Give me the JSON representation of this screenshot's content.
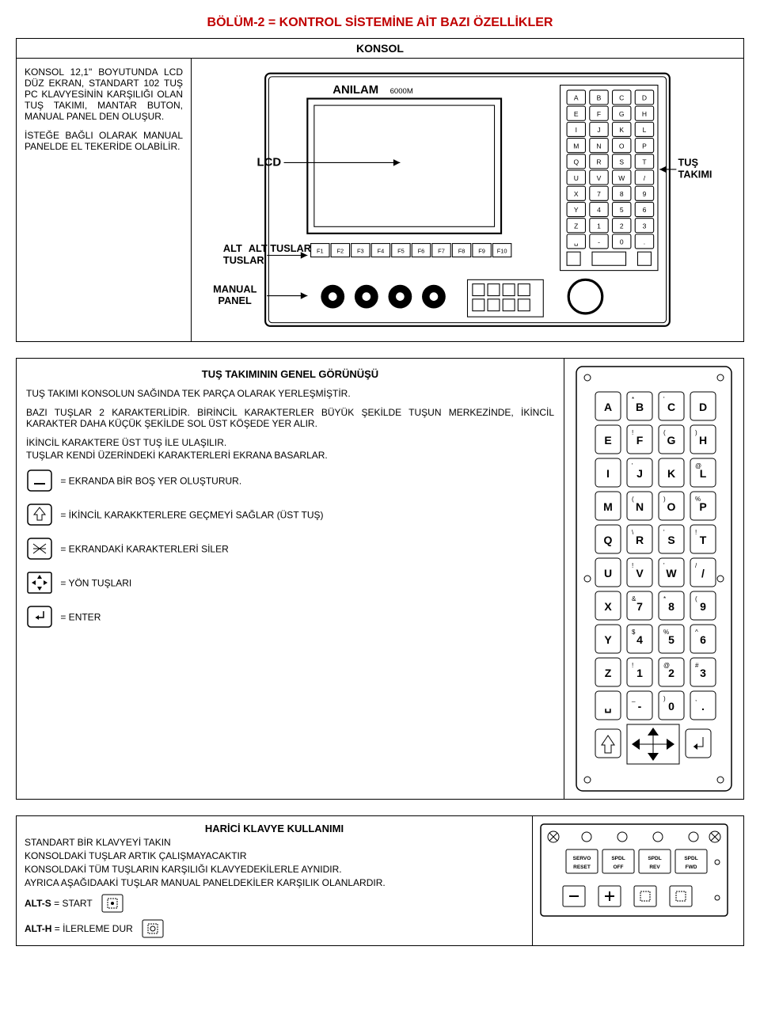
{
  "title": "BÖLÜM-2 = KONTROL SİSTEMİNE AİT BAZI ÖZELLİKLER",
  "s1": {
    "header": "KONSOL",
    "p1": "KONSOL 12,1\" BOYUTUNDA LCD DÜZ EKRAN, STANDART 102 TUŞ PC KLAVYESİNİN KARŞILIĞI OLAN TUŞ TAKIMI, MANTAR BUTON, MANUAL PANEL DEN OLUŞUR.",
    "p2": "İSTEĞE BAĞLI OLARAK MANUAL PANELDE EL TEKERİDE OLABİLİR.",
    "labels": {
      "lcd": "LCD",
      "alt": "ALT TUSLAR",
      "manual": "MANUAL PANEL",
      "tus": "TUŞ TAKIMI",
      "brand": "ANILAM",
      "model": "6000M"
    },
    "fkeys": [
      "F1",
      "F2",
      "F3",
      "F4",
      "F5",
      "F6",
      "F7",
      "F8",
      "F9",
      "F10"
    ],
    "keypad_rows": [
      [
        "A",
        "B",
        "C",
        "D"
      ],
      [
        "E",
        "F",
        "G",
        "H"
      ],
      [
        "I",
        "J",
        "K",
        "L"
      ],
      [
        "M",
        "N",
        "O",
        "P"
      ],
      [
        "Q",
        "R",
        "S",
        "T"
      ],
      [
        "U",
        "V",
        "W",
        "/"
      ],
      [
        "X",
        "7",
        "8",
        "9"
      ],
      [
        "Y",
        "4",
        "5",
        "6"
      ],
      [
        "Z",
        "1",
        "2",
        "3"
      ],
      [
        "␣",
        "-",
        "0",
        "."
      ]
    ]
  },
  "s2": {
    "header": "TUŞ TAKIMININ GENEL GÖRÜNÜŞÜ",
    "p1": "TUŞ TAKIMI KONSOLUN SAĞINDA TEK PARÇA OLARAK YERLEŞMİŞTİR.",
    "p2": "BAZI TUŞLAR 2 KARAKTERLİDİR. BİRİNCİL KARAKTERLER BÜYÜK ŞEKİLDE TUŞUN MERKEZİNDE, İKİNCİL KARAKTER DAHA KÜÇÜK ŞEKİLDE SOL ÜST KÖŞEDE YER ALIR.",
    "p3": "İKİNCİL KARAKTERE ÜST TUŞ İLE ULAŞILIR.",
    "p4": "TUŞLAR KENDİ ÜZERİNDEKİ KARAKTERLERİ EKRANA BASARLAR.",
    "l1": "= EKRANDA BİR BOŞ YER OLUŞTURUR.",
    "l2": "= İKİNCİL KARAKKTERLERE GEÇMEYİ SAĞLAR (ÜST TUŞ)",
    "l3": "= EKRANDAKİ KARAKTERLERİ SİLER",
    "l4": "= YÖN TUŞLARI",
    "l5": "= ENTER",
    "keypad_rows": [
      [
        [
          "A",
          ""
        ],
        [
          "B",
          "*"
        ],
        [
          "C",
          "'"
        ],
        [
          "D",
          ""
        ]
      ],
      [
        [
          "E",
          ""
        ],
        [
          "F",
          "!"
        ],
        [
          "G",
          "("
        ],
        [
          "H",
          ")"
        ]
      ],
      [
        [
          "I",
          ""
        ],
        [
          "J",
          "'"
        ],
        [
          "K",
          ""
        ],
        [
          "L",
          "@"
        ]
      ],
      [
        [
          "M",
          ""
        ],
        [
          "N",
          "("
        ],
        [
          "O",
          ")"
        ],
        [
          "P",
          "%"
        ]
      ],
      [
        [
          "Q",
          ""
        ],
        [
          "R",
          "\\"
        ],
        [
          "S",
          "'"
        ],
        [
          "T",
          "!"
        ]
      ],
      [
        [
          "U",
          ""
        ],
        [
          "V",
          "!"
        ],
        [
          "W",
          "'"
        ],
        [
          "/",
          "/"
        ]
      ],
      [
        [
          "X",
          ""
        ],
        [
          "7",
          "&"
        ],
        [
          "8",
          "*"
        ],
        [
          "9",
          "("
        ]
      ],
      [
        [
          "Y",
          ""
        ],
        [
          "4",
          "$"
        ],
        [
          "5",
          "%"
        ],
        [
          "6",
          "^"
        ]
      ],
      [
        [
          "Z",
          ""
        ],
        [
          "1",
          "!"
        ],
        [
          "2",
          "@"
        ],
        [
          "3",
          "#"
        ]
      ],
      [
        [
          "␣",
          ""
        ],
        [
          "-",
          "_"
        ],
        [
          "0",
          ")"
        ],
        [
          ".",
          ","
        ]
      ]
    ]
  },
  "s3": {
    "header": "HARİCİ KLAVYE KULLANIMI",
    "p1": "STANDART BİR KLAVYEYİ TAKIN",
    "p2": "KONSOLDAKİ TUŞLAR ARTIK ÇALIŞMAYACAKTIR",
    "p3": "KONSOLDAKİ TÜM TUŞLARIN KARŞILIĞI KLAVYEDEKİLERLE AYNIDIR.",
    "p4": "AYRICA AŞAĞIDAAKİ TUŞLAR MANUAL PANELDEKİLER KARŞILIK OLANLARDIR.",
    "alt_s_label": "ALT-S",
    "alt_s_text": " = START",
    "alt_h_label": "ALT-H",
    "alt_h_text": " = İLERLEME DUR",
    "panel_labels": [
      "SERVO RESET",
      "SPDL OFF",
      "SPDL REV",
      "SPDL FWD"
    ]
  },
  "colors": {
    "title": "#c00000",
    "border": "#000000",
    "bg": "#ffffff"
  }
}
